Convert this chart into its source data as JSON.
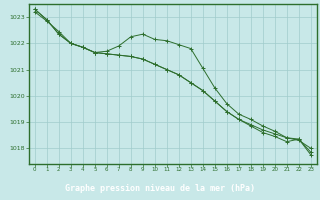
{
  "title": "Graphe pression niveau de la mer (hPa)",
  "bg_color": "#c8e8e8",
  "plot_bg_color": "#c8e8e8",
  "grid_color": "#a0cccc",
  "line_color": "#2d6e2d",
  "label_bg_color": "#3a7a3a",
  "label_text_color": "#ffffff",
  "border_color": "#2d6e2d",
  "xlim": [
    -0.5,
    23.5
  ],
  "ylim": [
    1017.4,
    1023.5
  ],
  "yticks": [
    1018,
    1019,
    1020,
    1021,
    1022,
    1023
  ],
  "xticks": [
    0,
    1,
    2,
    3,
    4,
    5,
    6,
    7,
    8,
    9,
    10,
    11,
    12,
    13,
    14,
    15,
    16,
    17,
    18,
    19,
    20,
    21,
    22,
    23
  ],
  "line1_x": [
    0,
    1,
    2,
    3,
    4,
    5,
    6,
    7,
    8,
    9,
    10,
    11,
    12,
    13,
    14,
    15,
    16,
    17,
    18,
    19,
    20,
    21,
    22,
    23
  ],
  "line1_y": [
    1023.3,
    1022.9,
    1022.35,
    1022.0,
    1021.85,
    1021.65,
    1021.6,
    1021.55,
    1021.5,
    1021.4,
    1021.2,
    1021.0,
    1020.8,
    1020.5,
    1020.2,
    1019.8,
    1019.4,
    1019.1,
    1018.9,
    1018.7,
    1018.55,
    1018.4,
    1018.3,
    1018.0
  ],
  "line2_x": [
    0,
    1,
    2,
    3,
    4,
    5,
    6,
    7,
    8,
    9,
    10,
    11,
    12,
    13,
    14,
    15,
    16,
    17,
    18,
    19,
    20,
    21,
    22,
    23
  ],
  "line2_y": [
    1023.2,
    1022.85,
    1022.45,
    1022.0,
    1021.85,
    1021.65,
    1021.7,
    1021.9,
    1022.25,
    1022.35,
    1022.15,
    1022.1,
    1021.95,
    1021.8,
    1021.05,
    1020.3,
    1019.7,
    1019.3,
    1019.1,
    1018.85,
    1018.65,
    1018.4,
    1018.35,
    1017.75
  ],
  "line3_x": [
    0,
    1,
    2,
    3,
    4,
    5,
    6,
    7,
    8,
    9,
    10,
    11,
    12,
    13,
    14,
    15,
    16,
    17,
    18,
    19,
    20,
    21,
    22,
    23
  ],
  "line3_y": [
    1023.3,
    1022.9,
    1022.35,
    1022.0,
    1021.85,
    1021.65,
    1021.6,
    1021.55,
    1021.5,
    1021.4,
    1021.2,
    1021.0,
    1020.8,
    1020.5,
    1020.2,
    1019.8,
    1019.4,
    1019.1,
    1018.85,
    1018.6,
    1018.45,
    1018.25,
    1018.35,
    1017.85
  ]
}
